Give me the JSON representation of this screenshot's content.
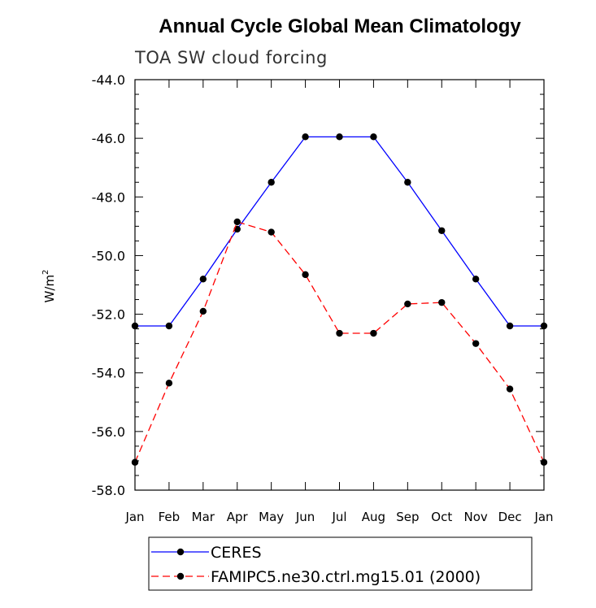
{
  "chart_data": {
    "type": "line",
    "title": "Annual Cycle Global Mean Climatology",
    "subtitle": "TOA SW cloud forcing",
    "ylabel": "W/m",
    "ylabel_sup": "2",
    "xlabel": "",
    "categories": [
      "Jan",
      "Feb",
      "Mar",
      "Apr",
      "May",
      "Jun",
      "Jul",
      "Aug",
      "Sep",
      "Oct",
      "Nov",
      "Dec",
      "Jan"
    ],
    "ylim": [
      -58.0,
      -44.0
    ],
    "yticks_major": [
      "-44.0",
      "-46.0",
      "-48.0",
      "-50.0",
      "-52.0",
      "-54.0",
      "-56.0",
      "-58.0"
    ],
    "yticks_major_values": [
      -44,
      -46,
      -48,
      -50,
      -52,
      -54,
      -56,
      -58
    ],
    "legend_position": "bottom",
    "series": [
      {
        "name": "CERES",
        "color": "#0000ff",
        "dash": "solid",
        "values": [
          -52.4,
          -52.4,
          -50.8,
          -49.1,
          -47.5,
          -45.95,
          -45.95,
          -45.95,
          -47.5,
          -49.15,
          -50.8,
          -52.4,
          -52.4
        ]
      },
      {
        "name": "FAMIPC5.ne30.ctrl.mg15.01 (2000)",
        "color": "#ff0000",
        "dash": "dashed",
        "values": [
          -57.05,
          -54.35,
          -51.9,
          -48.85,
          -49.2,
          -50.65,
          -52.65,
          -52.65,
          -51.65,
          -51.6,
          -53.0,
          -54.55,
          -57.05
        ]
      }
    ]
  }
}
